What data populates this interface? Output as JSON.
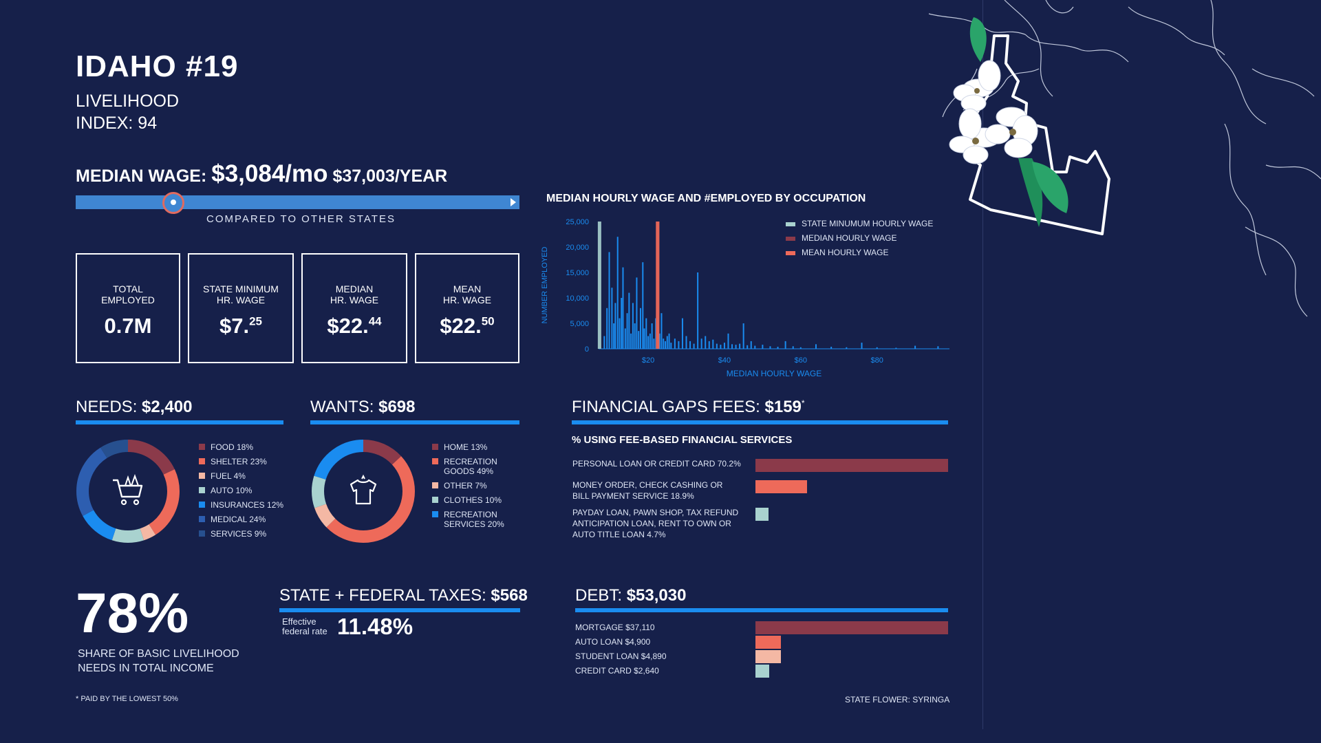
{
  "header": {
    "title": "IDAHO #19",
    "subtitle_line1": "LIVELIHOOD",
    "subtitle_line2": "INDEX: 94"
  },
  "median_wage": {
    "label": "MEDIAN WAGE:",
    "monthly": "$3,084/mo",
    "yearly": "$37,003/YEAR",
    "compare_label": "COMPARED TO OTHER STATES",
    "rank_fraction": 0.22
  },
  "stats": [
    {
      "label_line1": "TOTAL",
      "label_line2": "EMPLOYED",
      "value": "0.7M",
      "sup": ""
    },
    {
      "label_line1": "STATE MINIMUM",
      "label_line2": "HR. WAGE",
      "value": "$7.",
      "sup": "25"
    },
    {
      "label_line1": "MEDIAN",
      "label_line2": "HR. WAGE",
      "value": "$22.",
      "sup": "44"
    },
    {
      "label_line1": "MEAN",
      "label_line2": "HR. WAGE",
      "value": "$22.",
      "sup": "50"
    }
  ],
  "needs": {
    "label": "NEEDS:",
    "value": "$2,400",
    "icon": "shopping-cart-icon",
    "items": [
      {
        "label": "FOOD 18%",
        "pct": 18,
        "color": "#8b3a4a"
      },
      {
        "label": "SHELTER 23%",
        "pct": 23,
        "color": "#ee6a5a"
      },
      {
        "label": "FUEL 4%",
        "pct": 4,
        "color": "#f4b8a4"
      },
      {
        "label": "AUTO 10%",
        "pct": 10,
        "color": "#a9d2cf"
      },
      {
        "label": "INSURANCES 12%",
        "pct": 12,
        "color": "#1a8cf0"
      },
      {
        "label": "MEDICAL 24%",
        "pct": 24,
        "color": "#2d5eb0"
      },
      {
        "label": "SERVICES 9%",
        "pct": 9,
        "color": "#27508f"
      }
    ]
  },
  "wants": {
    "label": "WANTS:",
    "value": "$698",
    "icon": "tshirt-icon",
    "items": [
      {
        "label": "HOME 13%",
        "pct": 13,
        "color": "#8b3a4a"
      },
      {
        "label": "RECREATION GOODS 49%",
        "label_line1": "RECREATION",
        "label_line2": "GOODS 49%",
        "pct": 49,
        "color": "#ee6a5a"
      },
      {
        "label": "OTHER 7%",
        "pct": 7,
        "color": "#f4b8a4"
      },
      {
        "label": "CLOTHES 10%",
        "pct": 10,
        "color": "#a9d2cf"
      },
      {
        "label": "RECREATION SERVICES 20%",
        "label_line1": "RECREATION",
        "label_line2": "SERVICES 20%",
        "pct": 20,
        "color": "#1a8cf0"
      }
    ]
  },
  "financial": {
    "label": "FINANCIAL GAPS FEES:",
    "value": "$159",
    "asterisk": "*",
    "subtitle": "% USING FEE-BASED FINANCIAL SERVICES",
    "items": [
      {
        "line1": "PERSONAL LOAN OR CREDIT CARD 70.2%",
        "line2": "",
        "line3": "",
        "pct": 70.2,
        "color": "#8b3a4a"
      },
      {
        "line1": "MONEY ORDER, CHECK CASHING OR",
        "line2": "BILL PAYMENT SERVICE 18.9%",
        "line3": "",
        "pct": 18.9,
        "color": "#ee6a5a"
      },
      {
        "line1": "PAYDAY LOAN, PAWN SHOP, TAX REFUND",
        "line2": "ANTICIPATION LOAN, RENT TO OWN OR",
        "line3": "AUTO TITLE LOAN 4.7%",
        "pct": 4.7,
        "color": "#a9d2cf"
      }
    ]
  },
  "share": {
    "value": "78%",
    "label_line1": "SHARE OF BASIC LIVELIHOOD",
    "label_line2": "NEEDS IN TOTAL INCOME"
  },
  "taxes": {
    "label": "STATE + FEDERAL TAXES:",
    "value": "$568",
    "rate_label_line1": "Effective",
    "rate_label_line2": "federal rate",
    "rate": "11.48%"
  },
  "debt": {
    "label": "DEBT:",
    "value": "$53,030",
    "items": [
      {
        "label": "MORTGAGE $37,110",
        "amount": 37110,
        "color": "#8b3a4a"
      },
      {
        "label": "AUTO LOAN $4,900",
        "amount": 4900,
        "color": "#ee6a5a"
      },
      {
        "label": "STUDENT LOAN $4,890",
        "amount": 4890,
        "color": "#f4b8a4"
      },
      {
        "label": "CREDIT CARD $2,640",
        "amount": 2640,
        "color": "#a9d2cf"
      }
    ]
  },
  "footer": {
    "footnote": "* PAID BY THE LOWEST 50%",
    "flower": "STATE FLOWER: SYRINGA"
  },
  "chart_data": {
    "type": "bar",
    "title": "MEDIAN HOURLY WAGE AND #EMPLOYED BY OCCUPATION",
    "xlabel": "MEDIAN HOURLY WAGE",
    "ylabel": "NUMBER EMPLOYED",
    "xlim": [
      7,
      99
    ],
    "ylim": [
      0,
      25000
    ],
    "x_ticks": [
      20,
      40,
      60,
      80
    ],
    "x_tick_labels": [
      "$20",
      "$40",
      "$60",
      "$80"
    ],
    "y_ticks": [
      0,
      5000,
      10000,
      15000,
      20000,
      25000
    ],
    "y_tick_labels": [
      "0",
      "5,000",
      "10,000",
      "15,000",
      "20,000",
      "25,000"
    ],
    "legend_position": "top-right",
    "reference_lines": [
      {
        "name": "STATE MINUMUM HOURLY WAGE",
        "x": 7.25,
        "color": "#a9d2cf"
      },
      {
        "name": "MEDIAN HOURLY WAGE",
        "x": 22.44,
        "color": "#8b3a4a"
      },
      {
        "name": "MEAN HOURLY WAGE",
        "x": 22.5,
        "color": "#ee6a5a"
      }
    ],
    "bar_color": "#1a8cf0",
    "x": [
      8.5,
      9.2,
      9.8,
      10.5,
      11.0,
      11.4,
      12.0,
      12.5,
      13.0,
      13.4,
      14.0,
      14.5,
      15.0,
      15.5,
      16.0,
      16.5,
      17.0,
      17.5,
      18.0,
      18.6,
      19.0,
      19.5,
      20.0,
      20.5,
      21.0,
      21.5,
      22.0,
      23.0,
      23.5,
      24.0,
      24.5,
      25.0,
      25.5,
      26.0,
      27.0,
      28.0,
      29.0,
      30.0,
      31.0,
      32.0,
      33.0,
      34.0,
      35.0,
      36.0,
      37.0,
      38.0,
      39.0,
      40.0,
      41.0,
      42.0,
      43.0,
      44.0,
      45.0,
      46.0,
      47.0,
      48.0,
      50.0,
      52.0,
      54.0,
      56.0,
      58.0,
      60.0,
      64.0,
      68.0,
      72.0,
      76.0,
      80.0,
      85.0,
      90.0,
      96.0
    ],
    "values": [
      2500,
      8000,
      19000,
      12000,
      5000,
      9000,
      22000,
      6000,
      10000,
      16000,
      4000,
      7000,
      11000,
      3000,
      9000,
      5000,
      14000,
      3500,
      8000,
      17000,
      4000,
      6000,
      2500,
      3000,
      5000,
      2000,
      6000,
      3000,
      7000,
      2000,
      1500,
      2500,
      3000,
      1200,
      2000,
      1500,
      6000,
      2500,
      1500,
      1000,
      15000,
      2000,
      2500,
      1500,
      1800,
      1000,
      800,
      1200,
      3000,
      900,
      800,
      1000,
      5000,
      700,
      1500,
      600,
      800,
      500,
      400,
      1500,
      500,
      300,
      900,
      400,
      300,
      1200,
      300,
      200,
      600,
      500
    ]
  }
}
